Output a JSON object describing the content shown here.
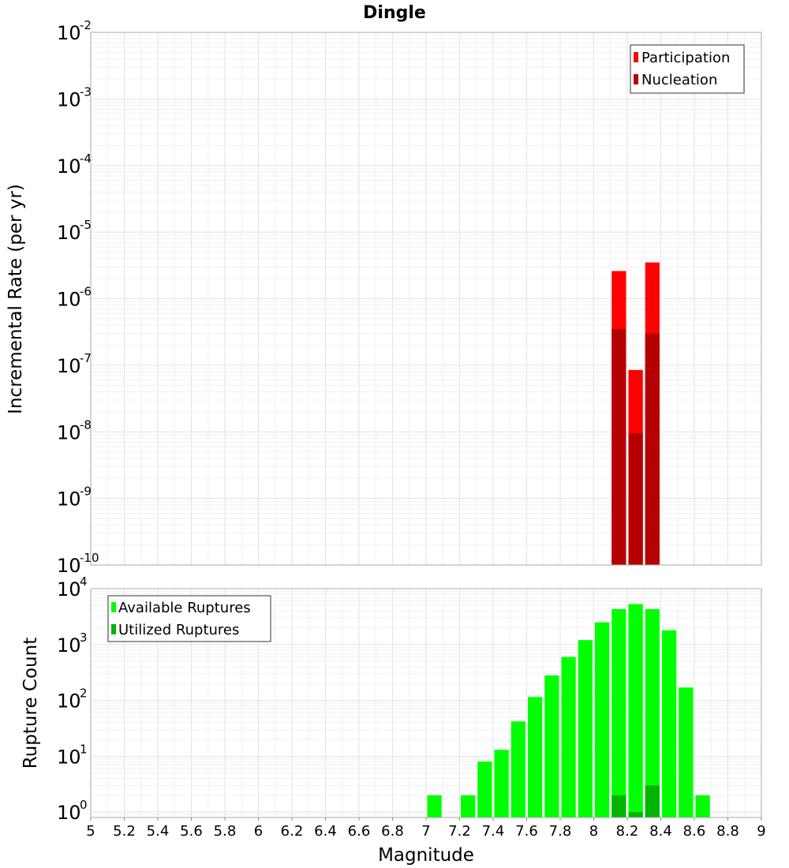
{
  "chart_data": [
    {
      "type": "bar",
      "title": "Dingle",
      "xlabel": "",
      "ylabel": "Incremental Rate (per yr)",
      "xlim": [
        5,
        9
      ],
      "ylim": [
        1e-10,
        0.01
      ],
      "y_scale": "log",
      "y_ticks": [
        {
          "base": "10",
          "exp": "-2"
        },
        {
          "base": "10",
          "exp": "-3"
        },
        {
          "base": "10",
          "exp": "-4"
        },
        {
          "base": "10",
          "exp": "-5"
        },
        {
          "base": "10",
          "exp": "-6"
        },
        {
          "base": "10",
          "exp": "-7"
        },
        {
          "base": "10",
          "exp": "-8"
        },
        {
          "base": "10",
          "exp": "-9"
        },
        {
          "base": "10",
          "exp": "-10"
        }
      ],
      "grid": true,
      "legend_position": "top-right",
      "series": [
        {
          "name": "Participation",
          "color": "#ff0000",
          "points": [
            [
              8.15,
              2.6e-06
            ],
            [
              8.25,
              8.5e-08
            ],
            [
              8.35,
              3.5e-06
            ]
          ]
        },
        {
          "name": "Nucleation",
          "color": "#b40000",
          "points": [
            [
              8.15,
              3.5e-07
            ],
            [
              8.25,
              9.5e-09
            ],
            [
              8.35,
              3e-07
            ]
          ]
        }
      ]
    },
    {
      "type": "bar",
      "title": "",
      "xlabel": "Magnitude",
      "ylabel": "Rupture Count",
      "xlim": [
        5,
        9
      ],
      "ylim": [
        0.8,
        10000
      ],
      "y_scale": "log",
      "x_ticks": [
        "5",
        "5.2",
        "5.4",
        "5.6",
        "5.8",
        "6",
        "6.2",
        "6.4",
        "6.6",
        "6.8",
        "7",
        "7.2",
        "7.4",
        "7.6",
        "7.8",
        "8",
        "8.2",
        "8.4",
        "8.6",
        "8.8",
        "9"
      ],
      "y_ticks": [
        {
          "base": "10",
          "exp": "4"
        },
        {
          "base": "10",
          "exp": "3"
        },
        {
          "base": "10",
          "exp": "2"
        },
        {
          "base": "10",
          "exp": "1"
        },
        {
          "base": "10",
          "exp": "0"
        }
      ],
      "grid": true,
      "legend_position": "top-left",
      "series": [
        {
          "name": "Available Ruptures",
          "color": "#00ff00",
          "points": [
            [
              7.05,
              2
            ],
            [
              7.25,
              2
            ],
            [
              7.35,
              8
            ],
            [
              7.45,
              13
            ],
            [
              7.55,
              42
            ],
            [
              7.65,
              115
            ],
            [
              7.75,
              280
            ],
            [
              7.85,
              600
            ],
            [
              7.95,
              1200
            ],
            [
              8.05,
              2500
            ],
            [
              8.15,
              4300
            ],
            [
              8.25,
              5300
            ],
            [
              8.35,
              4300
            ],
            [
              8.45,
              1800
            ],
            [
              8.55,
              170
            ],
            [
              8.65,
              2
            ]
          ]
        },
        {
          "name": "Utilized Ruptures",
          "color": "#00b400",
          "points": [
            [
              8.15,
              2
            ],
            [
              8.25,
              1
            ],
            [
              8.35,
              3
            ]
          ]
        }
      ]
    }
  ]
}
